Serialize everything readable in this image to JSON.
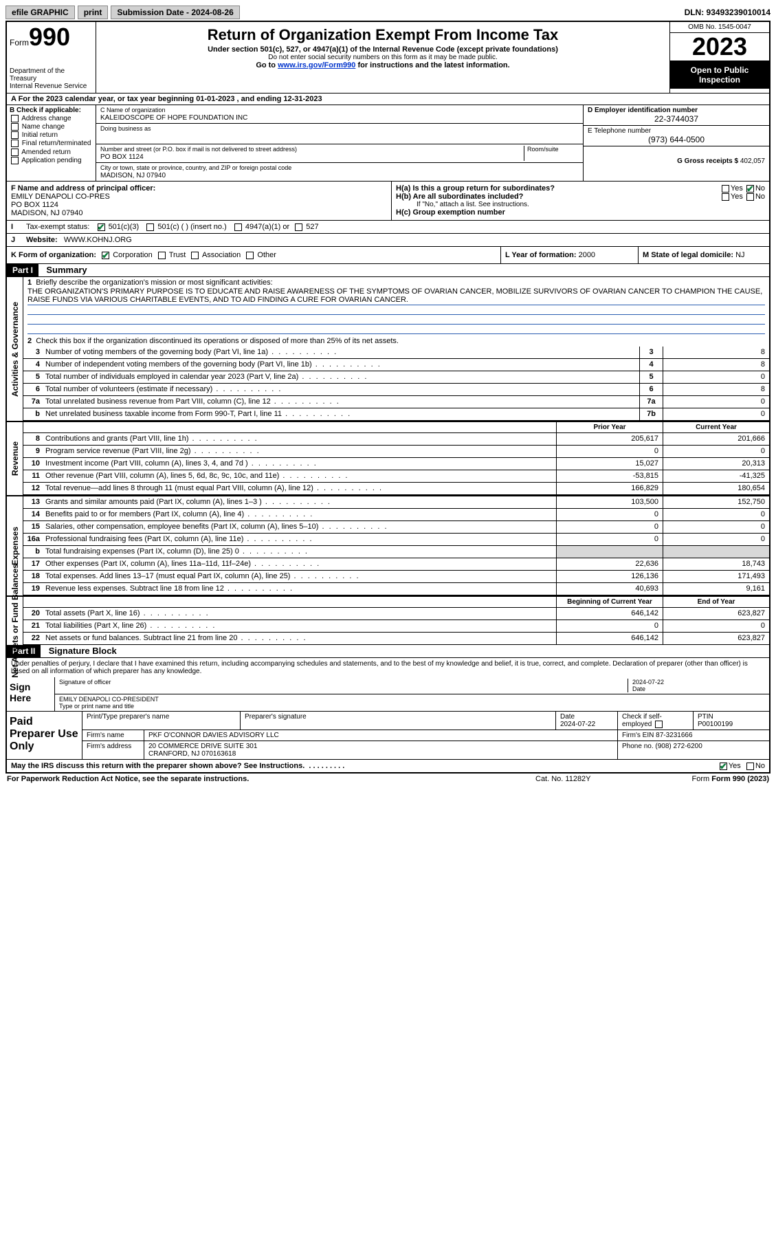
{
  "topbar": {
    "efile": "efile GRAPHIC",
    "print": "print",
    "submission": "Submission Date - 2024-08-26",
    "dln": "DLN: 93493239010014"
  },
  "header": {
    "form_label": "Form",
    "form_num": "990",
    "dept": "Department of the Treasury\nInternal Revenue Service",
    "title": "Return of Organization Exempt From Income Tax",
    "sub1": "Under section 501(c), 527, or 4947(a)(1) of the Internal Revenue Code (except private foundations)",
    "sub2": "Do not enter social security numbers on this form as it may be made public.",
    "link_pre": "Go to ",
    "link": "www.irs.gov/Form990",
    "link_post": " for instructions and the latest information.",
    "omb": "OMB No. 1545-0047",
    "year": "2023",
    "open": "Open to Public Inspection"
  },
  "lineA": "A For the 2023 calendar year, or tax year beginning 01-01-2023   , and ending 12-31-2023",
  "secB": {
    "hdr": "B Check if applicable:",
    "opts": [
      "Address change",
      "Name change",
      "Initial return",
      "Final return/terminated",
      "Amended return",
      "Application pending"
    ]
  },
  "secC": {
    "name_lbl": "C Name of organization",
    "name": "KALEIDOSCOPE OF HOPE FOUNDATION INC",
    "dba_lbl": "Doing business as",
    "dba": "",
    "addr_lbl": "Number and street (or P.O. box if mail is not delivered to street address)",
    "room_lbl": "Room/suite",
    "addr": "PO BOX 1124",
    "city_lbl": "City or town, state or province, country, and ZIP or foreign postal code",
    "city": "MADISON, NJ  07940"
  },
  "secDE": {
    "d_lbl": "D Employer identification number",
    "ein": "22-3744037",
    "e_lbl": "E Telephone number",
    "phone": "(973) 644-0500",
    "g_lbl": "G Gross receipts $",
    "gross": "402,057"
  },
  "secF": {
    "f_lbl": "F Name and address of principal officer:",
    "f_name": "EMILY DENAPOLI CO-PRES",
    "f_addr1": "PO BOX 1124",
    "f_addr2": "MADISON, NJ  07940",
    "ha": "H(a)  Is this a group return for subordinates?",
    "hb": "H(b)  Are all subordinates included?",
    "hnote": "If \"No,\" attach a list. See instructions.",
    "hc": "H(c)  Group exemption number",
    "yes": "Yes",
    "no": "No"
  },
  "secI": {
    "lbl": "Tax-exempt status:",
    "o1": "501(c)(3)",
    "o2": "501(c) (  ) (insert no.)",
    "o3": "4947(a)(1) or",
    "o4": "527"
  },
  "secJ": {
    "lbl": "Website:",
    "val": "WWW.KOHNJ.ORG"
  },
  "secK": {
    "lbl": "K Form of organization:",
    "o1": "Corporation",
    "o2": "Trust",
    "o3": "Association",
    "o4": "Other"
  },
  "secL": {
    "lbl": "L Year of formation:",
    "val": "2000"
  },
  "secM": {
    "lbl": "M State of legal domicile:",
    "val": "NJ"
  },
  "part1": {
    "hdr": "Part I",
    "title": "Summary"
  },
  "summary": {
    "q1": "Briefly describe the organization's mission or most significant activities:",
    "mission": "THE ORGANIZATION'S PRIMARY PURPOSE IS TO EDUCATE AND RAISE AWARENESS OF THE SYMPTOMS OF OVARIAN CANCER, MOBILIZE SURVIVORS OF OVARIAN CANCER TO CHAMPION THE CAUSE, RAISE FUNDS VIA VARIOUS CHARITABLE EVENTS, AND TO AID FINDING A CURE FOR OVARIAN CANCER.",
    "q2": "Check this box        if the organization discontinued its operations or disposed of more than 25% of its net assets.",
    "rows_gov": [
      {
        "n": "3",
        "d": "Number of voting members of the governing body (Part VI, line 1a)",
        "c": "3",
        "v": "8"
      },
      {
        "n": "4",
        "d": "Number of independent voting members of the governing body (Part VI, line 1b)",
        "c": "4",
        "v": "8"
      },
      {
        "n": "5",
        "d": "Total number of individuals employed in calendar year 2023 (Part V, line 2a)",
        "c": "5",
        "v": "0"
      },
      {
        "n": "6",
        "d": "Total number of volunteers (estimate if necessary)",
        "c": "6",
        "v": "8"
      },
      {
        "n": "7a",
        "d": "Total unrelated business revenue from Part VIII, column (C), line 12",
        "c": "7a",
        "v": "0"
      },
      {
        "n": "b",
        "d": "Net unrelated business taxable income from Form 990-T, Part I, line 11",
        "c": "7b",
        "v": "0"
      }
    ],
    "col_prior": "Prior Year",
    "col_curr": "Current Year",
    "rows_rev": [
      {
        "n": "8",
        "d": "Contributions and grants (Part VIII, line 1h)",
        "p": "205,617",
        "c": "201,666"
      },
      {
        "n": "9",
        "d": "Program service revenue (Part VIII, line 2g)",
        "p": "0",
        "c": "0"
      },
      {
        "n": "10",
        "d": "Investment income (Part VIII, column (A), lines 3, 4, and 7d )",
        "p": "15,027",
        "c": "20,313"
      },
      {
        "n": "11",
        "d": "Other revenue (Part VIII, column (A), lines 5, 6d, 8c, 9c, 10c, and 11e)",
        "p": "-53,815",
        "c": "-41,325"
      },
      {
        "n": "12",
        "d": "Total revenue—add lines 8 through 11 (must equal Part VIII, column (A), line 12)",
        "p": "166,829",
        "c": "180,654"
      }
    ],
    "rows_exp": [
      {
        "n": "13",
        "d": "Grants and similar amounts paid (Part IX, column (A), lines 1–3 )",
        "p": "103,500",
        "c": "152,750"
      },
      {
        "n": "14",
        "d": "Benefits paid to or for members (Part IX, column (A), line 4)",
        "p": "0",
        "c": "0"
      },
      {
        "n": "15",
        "d": "Salaries, other compensation, employee benefits (Part IX, column (A), lines 5–10)",
        "p": "0",
        "c": "0"
      },
      {
        "n": "16a",
        "d": "Professional fundraising fees (Part IX, column (A), line 11e)",
        "p": "0",
        "c": "0"
      },
      {
        "n": "b",
        "d": "Total fundraising expenses (Part IX, column (D), line 25) 0",
        "p": "",
        "c": "",
        "shade": true
      },
      {
        "n": "17",
        "d": "Other expenses (Part IX, column (A), lines 11a–11d, 11f–24e)",
        "p": "22,636",
        "c": "18,743"
      },
      {
        "n": "18",
        "d": "Total expenses. Add lines 13–17 (must equal Part IX, column (A), line 25)",
        "p": "126,136",
        "c": "171,493"
      },
      {
        "n": "19",
        "d": "Revenue less expenses. Subtract line 18 from line 12",
        "p": "40,693",
        "c": "9,161"
      }
    ],
    "col_begin": "Beginning of Current Year",
    "col_end": "End of Year",
    "rows_net": [
      {
        "n": "20",
        "d": "Total assets (Part X, line 16)",
        "p": "646,142",
        "c": "623,827"
      },
      {
        "n": "21",
        "d": "Total liabilities (Part X, line 26)",
        "p": "0",
        "c": "0"
      },
      {
        "n": "22",
        "d": "Net assets or fund balances. Subtract line 21 from line 20",
        "p": "646,142",
        "c": "623,827"
      }
    ]
  },
  "side_labels": {
    "gov": "Activities & Governance",
    "rev": "Revenue",
    "exp": "Expenses",
    "net": "Net Assets or Fund Balances"
  },
  "part2": {
    "hdr": "Part II",
    "title": "Signature Block"
  },
  "declare": "Under penalties of perjury, I declare that I have examined this return, including accompanying schedules and statements, and to the best of my knowledge and belief, it is true, correct, and complete. Declaration of preparer (other than officer) is based on all information of which preparer has any knowledge.",
  "sign": {
    "here": "Sign Here",
    "sig_lbl": "Signature of officer",
    "date_lbl": "Date",
    "date": "2024-07-22",
    "name": "EMILY DENAPOLI CO-PRESIDENT",
    "name_lbl": "Type or print name and title"
  },
  "paid": {
    "hdr": "Paid Preparer Use Only",
    "h1": "Print/Type preparer's name",
    "h2": "Preparer's signature",
    "h3": "Date",
    "h4": "Check        if self-employed",
    "h5": "PTIN",
    "date": "2024-07-22",
    "ptin": "P00100199",
    "firm_lbl": "Firm's name",
    "firm": "PKF O'CONNOR DAVIES ADVISORY LLC",
    "ein_lbl": "Firm's EIN",
    "ein": "87-3231666",
    "addr_lbl": "Firm's address",
    "addr1": "20 COMMERCE DRIVE SUITE 301",
    "addr2": "CRANFORD, NJ  070163618",
    "phone_lbl": "Phone no.",
    "phone": "(908) 272-6200"
  },
  "discuss": "May the IRS discuss this return with the preparer shown above? See Instructions.",
  "footer": {
    "f1": "For Paperwork Reduction Act Notice, see the separate instructions.",
    "f2": "Cat. No. 11282Y",
    "f3": "Form 990 (2023)"
  }
}
